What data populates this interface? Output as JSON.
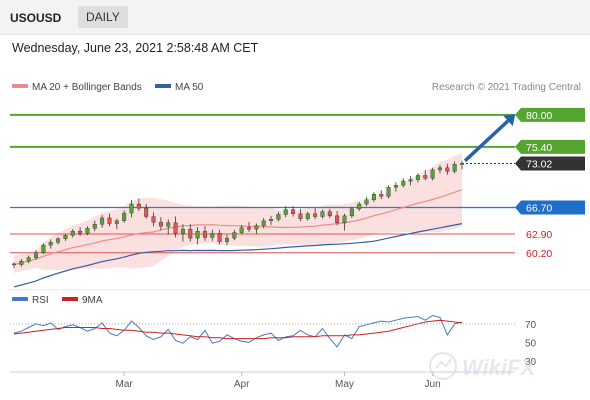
{
  "header": {
    "symbol": "USOUSD",
    "timeframe": "DAILY"
  },
  "timestamp": "Wednesday, June 23, 2021 2:58:48 AM CET",
  "legend": {
    "bb_label": "MA 20 + Bollinger Bands",
    "ma50_label": "MA 50",
    "credit": "Research © 2021 Trading Central"
  },
  "rsi_legend": {
    "rsi_label": "RSI",
    "ma9_label": "9MA"
  },
  "colors": {
    "bull": "#55a630",
    "bear": "#e05555",
    "ma20": "#f08a8a",
    "band": "#fadada",
    "ma50": "#3a5fa0",
    "arrow": "#2563a8",
    "current": "#333333",
    "support": "#2b7bd4",
    "rsi": "#4a78c8",
    "rsi_ma": "#cc2222"
  },
  "chart_data": [
    {
      "type": "candlestick",
      "title": "USOUSD DAILY",
      "x_ticks": [
        "Mar",
        "Apr",
        "May",
        "Jun"
      ],
      "ylim": [
        56,
        83
      ],
      "candles": [
        [
          58.6,
          58.8,
          58.0,
          58.5
        ],
        [
          58.5,
          59.3,
          58.2,
          59.0
        ],
        [
          59.0,
          59.8,
          58.7,
          59.5
        ],
        [
          59.5,
          60.6,
          59.2,
          60.2
        ],
        [
          60.2,
          61.6,
          60.0,
          61.3
        ],
        [
          61.3,
          62.1,
          60.8,
          61.7
        ],
        [
          61.7,
          62.4,
          61.4,
          62.2
        ],
        [
          62.2,
          62.9,
          61.9,
          62.7
        ],
        [
          62.7,
          63.6,
          62.4,
          63.3
        ],
        [
          63.3,
          63.9,
          62.6,
          63.0
        ],
        [
          63.0,
          64.0,
          62.7,
          63.7
        ],
        [
          63.7,
          64.8,
          63.3,
          64.3
        ],
        [
          64.3,
          65.6,
          63.8,
          65.2
        ],
        [
          65.2,
          65.8,
          64.0,
          64.4
        ],
        [
          64.4,
          65.1,
          63.6,
          64.8
        ],
        [
          64.8,
          66.3,
          64.5,
          65.9
        ],
        [
          65.9,
          67.8,
          65.3,
          67.2
        ],
        [
          67.2,
          68.0,
          66.2,
          66.6
        ],
        [
          66.6,
          67.2,
          65.1,
          65.4
        ],
        [
          65.4,
          66.0,
          64.0,
          64.6
        ],
        [
          64.6,
          65.3,
          63.4,
          64.0
        ],
        [
          64.0,
          65.0,
          62.8,
          64.5
        ],
        [
          64.5,
          65.4,
          62.4,
          63.0
        ],
        [
          63.0,
          64.3,
          61.8,
          63.6
        ],
        [
          63.6,
          64.3,
          61.8,
          62.3
        ],
        [
          62.3,
          63.9,
          61.4,
          63.3
        ],
        [
          63.3,
          64.0,
          61.9,
          62.4
        ],
        [
          62.4,
          63.5,
          61.9,
          63.0
        ],
        [
          63.0,
          63.5,
          61.4,
          61.8
        ],
        [
          61.8,
          62.8,
          61.3,
          62.3
        ],
        [
          62.3,
          63.5,
          62.0,
          63.1
        ],
        [
          63.1,
          64.2,
          62.8,
          63.8
        ],
        [
          63.8,
          64.6,
          63.2,
          63.6
        ],
        [
          63.6,
          64.4,
          62.9,
          64.1
        ],
        [
          64.1,
          65.2,
          63.7,
          64.8
        ],
        [
          64.8,
          65.5,
          64.2,
          65.0
        ],
        [
          65.0,
          66.1,
          64.7,
          65.7
        ],
        [
          65.7,
          66.9,
          65.3,
          66.4
        ],
        [
          66.4,
          66.9,
          65.4,
          65.8
        ],
        [
          65.8,
          66.5,
          64.7,
          65.1
        ],
        [
          65.1,
          66.1,
          64.8,
          65.8
        ],
        [
          65.8,
          66.6,
          65.0,
          65.4
        ],
        [
          65.4,
          66.4,
          65.1,
          66.1
        ],
        [
          66.1,
          66.5,
          65.2,
          65.5
        ],
        [
          65.5,
          66.2,
          64.1,
          64.5
        ],
        [
          64.5,
          65.8,
          63.4,
          65.5
        ],
        [
          65.5,
          66.8,
          65.2,
          66.5
        ],
        [
          66.5,
          67.5,
          66.2,
          67.2
        ],
        [
          67.2,
          68.2,
          66.9,
          67.8
        ],
        [
          67.8,
          68.9,
          67.5,
          68.6
        ],
        [
          68.6,
          69.2,
          67.9,
          68.3
        ],
        [
          68.3,
          69.9,
          68.0,
          69.6
        ],
        [
          69.6,
          70.3,
          69.0,
          69.9
        ],
        [
          69.9,
          70.9,
          69.6,
          70.5
        ],
        [
          70.5,
          71.2,
          69.9,
          70.7
        ],
        [
          70.7,
          71.6,
          70.3,
          71.3
        ],
        [
          71.3,
          72.1,
          70.6,
          70.9
        ],
        [
          70.9,
          72.4,
          70.6,
          72.1
        ],
        [
          72.1,
          72.8,
          71.6,
          72.4
        ],
        [
          72.4,
          73.0,
          71.4,
          71.9
        ],
        [
          71.9,
          73.3,
          71.6,
          72.9
        ],
        [
          72.9,
          73.4,
          72.2,
          73.02
        ]
      ],
      "levels": [
        {
          "label": "80.00",
          "value": 80.0,
          "type": "resistance"
        },
        {
          "label": "75.40",
          "value": 75.4,
          "type": "resistance"
        },
        {
          "label": "73.02",
          "value": 73.02,
          "type": "current"
        },
        {
          "label": "66.70",
          "value": 66.7,
          "type": "pivot"
        },
        {
          "label": "62.90",
          "value": 62.9,
          "type": "support"
        },
        {
          "label": "60.20",
          "value": 60.2,
          "type": "support"
        }
      ],
      "arrow": {
        "from_index": 61,
        "from_value": 73.4,
        "to_value": 80.0
      }
    },
    {
      "type": "line",
      "title": "RSI",
      "ylim": [
        20,
        85
      ],
      "y_ticks": [
        70,
        50,
        30
      ],
      "reference_line": 70,
      "series": [
        {
          "name": "RSI",
          "values": [
            60,
            62,
            66,
            70,
            68,
            71,
            64,
            67,
            69,
            66,
            62,
            65,
            71,
            60,
            57,
            63,
            73,
            66,
            57,
            53,
            56,
            64,
            52,
            49,
            56,
            53,
            63,
            49,
            51,
            58,
            54,
            51,
            50,
            55,
            58,
            60,
            52,
            56,
            57,
            63,
            58,
            56,
            65,
            54,
            45,
            58,
            54,
            67,
            69,
            71,
            73,
            72,
            74,
            76,
            77,
            78,
            74,
            79,
            77,
            58,
            70,
            72
          ]
        },
        {
          "name": "9MA",
          "values": [
            59,
            60,
            61,
            62,
            63,
            64,
            65,
            66,
            66,
            66,
            66,
            66,
            65,
            65,
            64,
            63,
            63,
            62,
            61,
            61,
            60,
            60,
            59,
            58,
            57,
            56,
            56,
            55,
            55,
            54,
            54,
            54,
            54,
            54,
            54,
            55,
            55,
            55,
            56,
            56,
            56,
            56,
            57,
            57,
            57,
            57,
            58,
            58,
            59,
            60,
            61,
            62,
            64,
            66,
            68,
            70,
            72,
            73,
            74,
            73,
            72,
            71
          ]
        }
      ]
    }
  ],
  "rsi_ticks": [
    "70",
    "50",
    "30"
  ],
  "watermark": "WikiFX"
}
